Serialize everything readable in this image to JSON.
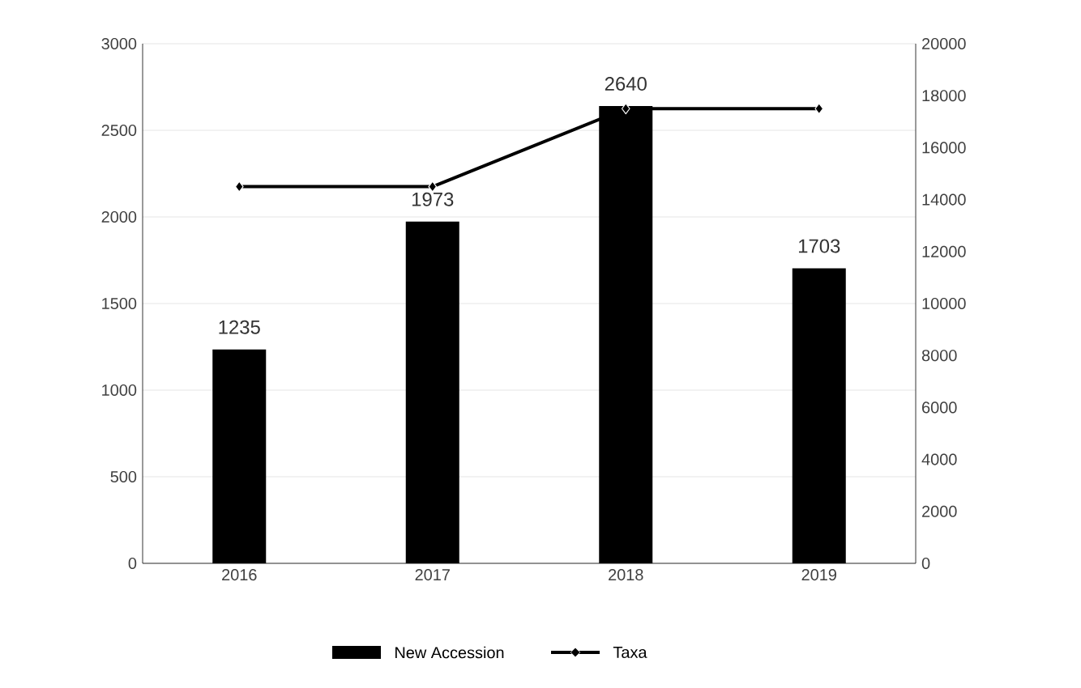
{
  "chart_data": {
    "type": "bar",
    "categories": [
      "2016",
      "2017",
      "2018",
      "2019"
    ],
    "series": [
      {
        "name": "New Accession",
        "color": "#000000",
        "values": [
          1235,
          1973,
          2640,
          1703
        ],
        "value_labels": [
          "1235",
          "1973",
          "2640",
          "1703"
        ]
      },
      {
        "name": "Taxa",
        "type": "line",
        "color": "#000000",
        "axis": "y2",
        "marker": "diamond",
        "values": [
          14500,
          14500,
          17500,
          17500
        ]
      }
    ],
    "ylim": [
      0,
      3000
    ],
    "yticks": [
      0,
      500,
      1000,
      1500,
      2000,
      2500,
      3000
    ],
    "y2lim": [
      0,
      20000
    ],
    "y2ticks": [
      0,
      2000,
      4000,
      6000,
      8000,
      10000,
      12000,
      14000,
      16000,
      18000,
      20000
    ],
    "grid": "y",
    "legend": "bottom"
  }
}
